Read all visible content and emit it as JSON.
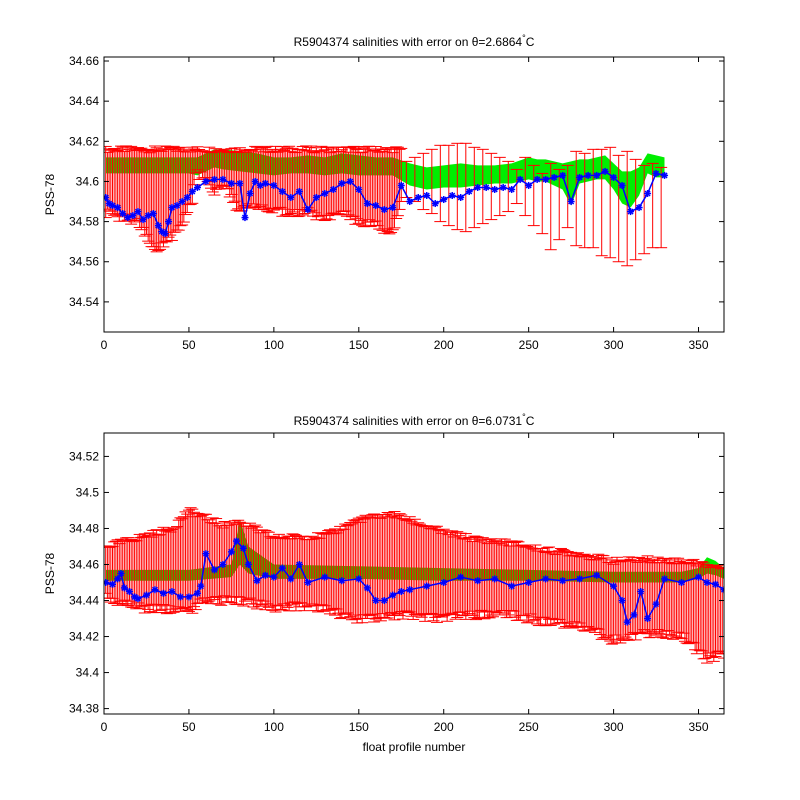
{
  "figure": {
    "background": "#ffffff"
  },
  "chart_data": [
    {
      "type": "line",
      "title_prefix": "R5904374 salinities with error on ",
      "title_theta": "θ=2.6864",
      "title_deg": "°",
      "title_unit": "C",
      "xlabel": "",
      "ylabel": "PSS-78",
      "xlim": [
        0,
        365
      ],
      "ylim": [
        34.525,
        34.662
      ],
      "xticks": [
        0,
        50,
        100,
        150,
        200,
        250,
        300,
        350
      ],
      "yticks": [
        34.54,
        34.56,
        34.58,
        34.6,
        34.62,
        34.64,
        34.66
      ],
      "ytick_labels": [
        "34.54",
        "34.56",
        "34.58",
        "34.6",
        "34.62",
        "34.64",
        "34.66"
      ],
      "band": {
        "color": "#00ee00",
        "x": [
          1,
          50,
          55,
          60,
          65,
          70,
          80,
          90,
          100,
          110,
          120,
          130,
          140,
          150,
          160,
          170,
          180,
          190,
          200,
          210,
          220,
          230,
          240,
          250,
          255,
          260,
          265,
          270,
          275,
          280,
          285,
          290,
          295,
          300,
          305,
          310,
          315,
          320,
          325,
          330
        ],
        "upper": [
          34.612,
          34.612,
          34.612,
          34.614,
          34.616,
          34.616,
          34.615,
          34.614,
          34.612,
          34.612,
          34.613,
          34.612,
          34.614,
          34.613,
          34.612,
          34.612,
          34.609,
          34.607,
          34.608,
          34.609,
          34.608,
          34.608,
          34.609,
          34.612,
          34.611,
          34.611,
          34.61,
          34.609,
          34.61,
          34.611,
          34.611,
          34.612,
          34.613,
          34.609,
          34.605,
          34.605,
          34.607,
          34.614,
          34.613,
          34.612
        ],
        "lower": [
          34.604,
          34.604,
          34.603,
          34.605,
          34.607,
          34.606,
          34.605,
          34.604,
          34.603,
          34.604,
          34.604,
          34.603,
          34.604,
          34.603,
          34.603,
          34.603,
          34.598,
          34.596,
          34.597,
          34.597,
          34.598,
          34.599,
          34.599,
          34.601,
          34.6,
          34.6,
          34.598,
          34.596,
          34.588,
          34.599,
          34.6,
          34.601,
          34.601,
          34.596,
          34.589,
          34.587,
          34.593,
          34.604,
          34.602,
          34.602
        ]
      },
      "error_color": "#ff0000",
      "dense_errors": {
        "x_start": 1,
        "x_end": 175,
        "upper": 34.616,
        "lower_segments": [
          [
            1,
            34.584
          ],
          [
            20,
            34.58
          ],
          [
            30,
            34.565
          ],
          [
            35,
            34.568
          ],
          [
            45,
            34.578
          ],
          [
            52,
            34.59
          ],
          [
            54,
            34.605
          ],
          [
            60,
            34.6
          ],
          [
            65,
            34.595
          ],
          [
            70,
            34.6
          ],
          [
            80,
            34.585
          ],
          [
            90,
            34.588
          ],
          [
            100,
            34.586
          ],
          [
            110,
            34.583
          ],
          [
            120,
            34.585
          ],
          [
            130,
            34.58
          ],
          [
            140,
            34.584
          ],
          [
            150,
            34.58
          ],
          [
            160,
            34.578
          ],
          [
            170,
            34.575
          ],
          [
            175,
            34.588
          ]
        ]
      },
      "sparse_errors": {
        "x": [
          178,
          183,
          188,
          193,
          198,
          203,
          208,
          213,
          218,
          223,
          228,
          233,
          238,
          243,
          248,
          253,
          258,
          263,
          268,
          273,
          278,
          283,
          288,
          293,
          298,
          303,
          308,
          313,
          318,
          323,
          328
        ],
        "upper": [
          34.61,
          34.612,
          34.614,
          34.616,
          34.618,
          34.618,
          34.619,
          34.619,
          34.617,
          34.616,
          34.614,
          34.612,
          34.61,
          34.606,
          34.612,
          34.608,
          34.604,
          34.609,
          34.606,
          34.608,
          34.615,
          34.614,
          34.616,
          34.616,
          34.617,
          34.613,
          34.615,
          34.611,
          34.608,
          34.609,
          34.607
        ],
        "lower": [
          34.592,
          34.59,
          34.586,
          34.584,
          34.58,
          34.578,
          34.576,
          34.575,
          34.577,
          34.579,
          34.581,
          34.583,
          34.585,
          34.589,
          34.583,
          34.578,
          34.574,
          34.566,
          34.571,
          34.577,
          34.568,
          34.567,
          34.567,
          34.563,
          34.562,
          34.56,
          34.558,
          34.561,
          34.564,
          34.567,
          34.567
        ]
      },
      "series": [
        {
          "color": "#0000ff",
          "x": [
            1,
            3,
            5,
            8,
            11,
            14,
            17,
            20,
            23,
            26,
            29,
            32,
            34,
            36,
            38,
            40,
            43,
            46,
            49,
            52,
            55,
            60,
            65,
            70,
            75,
            80,
            83,
            86,
            89,
            92,
            95,
            100,
            105,
            110,
            115,
            120,
            125,
            130,
            135,
            140,
            145,
            150,
            155,
            160,
            165,
            170,
            175,
            180,
            185,
            190,
            195,
            200,
            205,
            210,
            215,
            220,
            225,
            230,
            235,
            240,
            245,
            250,
            255,
            260,
            265,
            270,
            275,
            280,
            285,
            290,
            295,
            300,
            305,
            310,
            315,
            320,
            325,
            330
          ],
          "y": [
            34.592,
            34.589,
            34.588,
            34.587,
            34.584,
            34.582,
            34.583,
            34.585,
            34.581,
            34.583,
            34.584,
            34.578,
            34.575,
            34.574,
            34.58,
            34.587,
            34.588,
            34.59,
            34.592,
            34.595,
            34.597,
            34.6,
            34.601,
            34.601,
            34.599,
            34.599,
            34.582,
            34.594,
            34.6,
            34.598,
            34.599,
            34.598,
            34.595,
            34.592,
            34.595,
            34.586,
            34.592,
            34.594,
            34.596,
            34.599,
            34.6,
            34.596,
            34.589,
            34.588,
            34.586,
            34.587,
            34.598,
            34.59,
            34.592,
            34.593,
            34.589,
            34.591,
            34.593,
            34.592,
            34.595,
            34.597,
            34.597,
            34.596,
            34.597,
            34.596,
            34.601,
            34.598,
            34.601,
            34.601,
            34.602,
            34.603,
            34.59,
            34.602,
            34.603,
            34.603,
            34.605,
            34.602,
            34.598,
            34.585,
            34.587,
            34.594,
            34.604,
            34.603
          ]
        }
      ]
    },
    {
      "type": "line",
      "title_prefix": "R5904374 salinities with error on ",
      "title_theta": "θ=6.0731",
      "title_deg": "°",
      "title_unit": "C",
      "xlabel": "float profile number",
      "ylabel": "PSS-78",
      "xlim": [
        0,
        365
      ],
      "ylim": [
        34.377,
        34.533
      ],
      "xticks": [
        0,
        50,
        100,
        150,
        200,
        250,
        300,
        350
      ],
      "yticks": [
        34.38,
        34.4,
        34.42,
        34.44,
        34.46,
        34.48,
        34.5,
        34.52
      ],
      "ytick_labels": [
        "34.38",
        "34.4",
        "34.42",
        "34.44",
        "34.46",
        "34.48",
        "34.5",
        "34.52"
      ],
      "band": {
        "color": "#00ee00",
        "x": [
          1,
          50,
          75,
          80,
          85,
          100,
          150,
          200,
          250,
          300,
          340,
          350,
          355,
          360,
          365
        ],
        "upper": [
          34.457,
          34.457,
          34.46,
          34.485,
          34.47,
          34.46,
          34.459,
          34.458,
          34.457,
          34.456,
          34.456,
          34.458,
          34.464,
          34.462,
          34.458
        ],
        "lower": [
          34.451,
          34.451,
          34.453,
          34.46,
          34.455,
          34.452,
          34.452,
          34.451,
          34.451,
          34.45,
          34.45,
          34.452,
          34.455,
          34.454,
          34.452
        ]
      },
      "error_color": "#ff0000",
      "dense_errors": {
        "x_start": 1,
        "x_end": 365,
        "upper_segments": [
          [
            1,
            34.47
          ],
          [
            20,
            34.475
          ],
          [
            40,
            34.48
          ],
          [
            50,
            34.49
          ],
          [
            55,
            34.488
          ],
          [
            70,
            34.482
          ],
          [
            80,
            34.484
          ],
          [
            100,
            34.475
          ],
          [
            130,
            34.476
          ],
          [
            150,
            34.485
          ],
          [
            170,
            34.488
          ],
          [
            185,
            34.483
          ],
          [
            200,
            34.478
          ],
          [
            220,
            34.474
          ],
          [
            240,
            34.472
          ],
          [
            260,
            34.468
          ],
          [
            280,
            34.466
          ],
          [
            300,
            34.462
          ],
          [
            320,
            34.463
          ],
          [
            340,
            34.462
          ],
          [
            355,
            34.46
          ],
          [
            365,
            34.458
          ]
        ],
        "lower_segments": [
          [
            1,
            34.442
          ],
          [
            20,
            34.436
          ],
          [
            40,
            34.435
          ],
          [
            50,
            34.434
          ],
          [
            60,
            34.44
          ],
          [
            80,
            34.44
          ],
          [
            100,
            34.436
          ],
          [
            120,
            34.437
          ],
          [
            150,
            34.43
          ],
          [
            160,
            34.43
          ],
          [
            180,
            34.432
          ],
          [
            200,
            34.43
          ],
          [
            220,
            34.432
          ],
          [
            240,
            34.432
          ],
          [
            260,
            34.428
          ],
          [
            280,
            34.426
          ],
          [
            300,
            34.418
          ],
          [
            308,
            34.42
          ],
          [
            320,
            34.422
          ],
          [
            340,
            34.42
          ],
          [
            355,
            34.408
          ],
          [
            365,
            34.41
          ]
        ]
      },
      "series": [
        {
          "color": "#0000ff",
          "x": [
            1,
            5,
            8,
            10,
            12,
            15,
            18,
            20,
            25,
            30,
            35,
            40,
            45,
            50,
            55,
            57,
            60,
            65,
            70,
            75,
            78,
            82,
            85,
            90,
            95,
            100,
            105,
            110,
            115,
            120,
            130,
            140,
            150,
            155,
            160,
            165,
            170,
            175,
            180,
            190,
            200,
            210,
            220,
            230,
            240,
            250,
            260,
            270,
            280,
            290,
            300,
            305,
            308,
            312,
            316,
            320,
            325,
            330,
            340,
            350,
            355,
            360,
            365
          ],
          "y": [
            34.45,
            34.449,
            34.452,
            34.455,
            34.447,
            34.445,
            34.442,
            34.441,
            34.443,
            34.446,
            34.444,
            34.445,
            34.442,
            34.442,
            34.444,
            34.448,
            34.466,
            34.457,
            34.46,
            34.467,
            34.473,
            34.469,
            34.46,
            34.451,
            34.454,
            34.453,
            34.458,
            34.452,
            34.46,
            34.45,
            34.453,
            34.451,
            34.452,
            34.447,
            34.44,
            34.44,
            34.443,
            34.445,
            34.446,
            34.448,
            34.45,
            34.453,
            34.451,
            34.452,
            34.448,
            34.45,
            34.452,
            34.451,
            34.452,
            34.454,
            34.448,
            34.44,
            34.428,
            34.432,
            34.445,
            34.43,
            34.438,
            34.452,
            34.45,
            34.453,
            34.45,
            34.449,
            34.446
          ]
        }
      ]
    }
  ]
}
